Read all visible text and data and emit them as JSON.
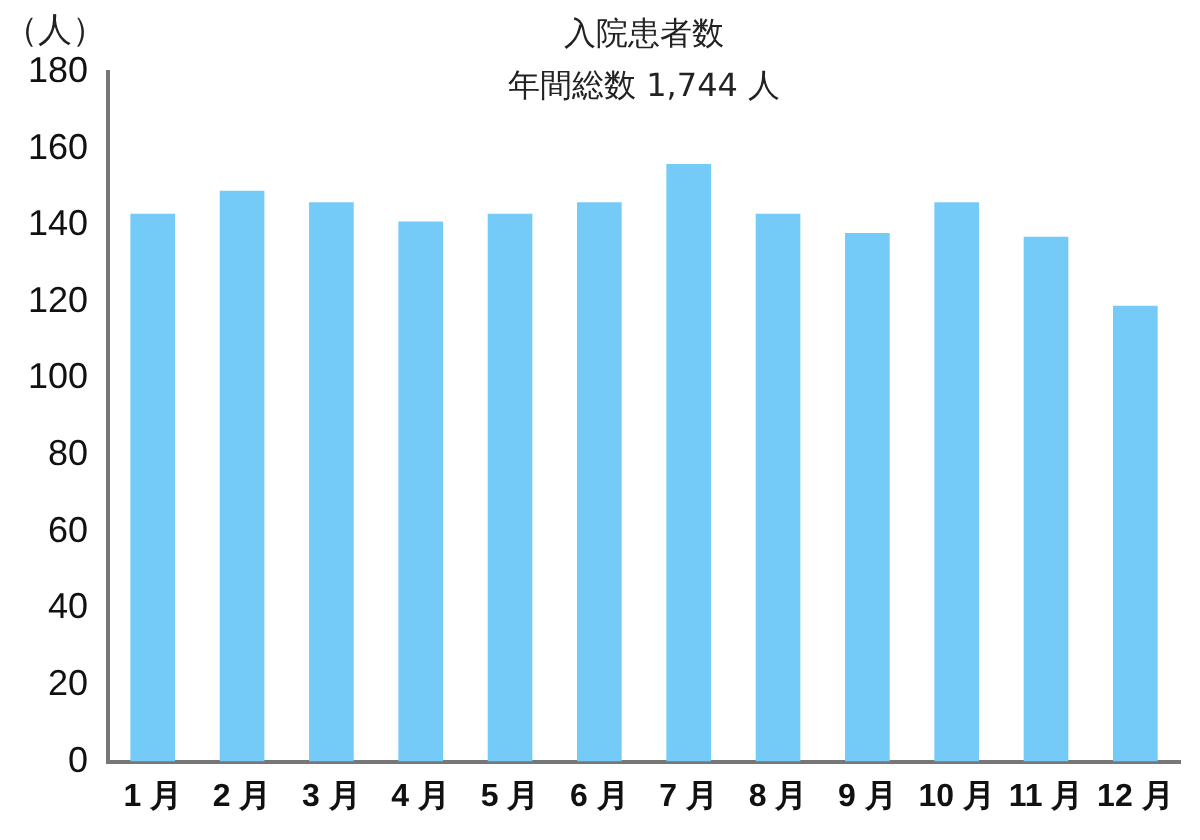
{
  "chart_data": {
    "type": "bar",
    "title": "入院患者数",
    "subtitle": "年間総数 1,744 人",
    "ylabel": "（人）",
    "categories": [
      "1 月",
      "2 月",
      "3 月",
      "4 月",
      "5 月",
      "6 月",
      "7 月",
      "8 月",
      "9 月",
      "10 月",
      "11 月",
      "12 月"
    ],
    "values": [
      143,
      149,
      146,
      141,
      143,
      146,
      156,
      143,
      138,
      146,
      137,
      119
    ],
    "color": "#74cbf8",
    "ylim": [
      0,
      180
    ],
    "yticks": [
      0,
      20,
      40,
      60,
      80,
      100,
      120,
      140,
      160,
      180
    ],
    "grid": false,
    "legend": false
  }
}
